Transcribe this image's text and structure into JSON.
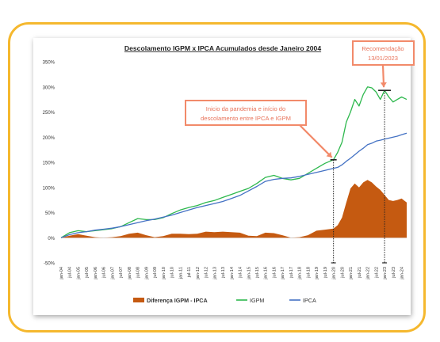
{
  "chart_data": {
    "type": "area",
    "title": "Descolamento IGPM x IPCA Acumulados desde Janeiro 2004",
    "xlabel": "",
    "ylabel": "",
    "ylim": [
      -50,
      350
    ],
    "yticks": [
      "-50%",
      "0%",
      "50%",
      "100%",
      "150%",
      "200%",
      "250%",
      "300%",
      "350%"
    ],
    "grid": false,
    "legend": "bottom",
    "xticks": [
      "jan-04",
      "jul-04",
      "jan-05",
      "jul-05",
      "jan-06",
      "jul-06",
      "jan-07",
      "jul-07",
      "jan-08",
      "jul-08",
      "jan-09",
      "jul-09",
      "jan-10",
      "jul-10",
      "jan-11",
      "jul-11",
      "jan-12",
      "jul-12",
      "jan-13",
      "jul-13",
      "jan-14",
      "jul-14",
      "jan-15",
      "jul-15",
      "jan-16",
      "jul-16",
      "jan-17",
      "jul-17",
      "jan-18",
      "jul-18",
      "jan-19",
      "jul-19",
      "jan-20",
      "jul-20",
      "jan-21",
      "jul-21",
      "jan-22",
      "jul-22",
      "jan-23",
      "jul-23",
      "jan-24"
    ],
    "x": [
      2004.0,
      2004.5,
      2005.0,
      2005.5,
      2006.0,
      2006.5,
      2007.0,
      2007.5,
      2008.0,
      2008.5,
      2009.0,
      2009.5,
      2010.0,
      2010.5,
      2011.0,
      2011.5,
      2012.0,
      2012.5,
      2013.0,
      2013.5,
      2014.0,
      2014.5,
      2015.0,
      2015.5,
      2016.0,
      2016.5,
      2017.0,
      2017.5,
      2018.0,
      2018.5,
      2019.0,
      2019.5,
      2020.0,
      2020.25,
      2020.5,
      2020.75,
      2021.0,
      2021.25,
      2021.5,
      2021.75,
      2022.0,
      2022.25,
      2022.5,
      2022.75,
      2023.0,
      2023.25,
      2023.5,
      2023.75,
      2024.0,
      2024.3
    ],
    "series": [
      {
        "name": "Diferença IGPM - IPCA",
        "color": "#c55a11",
        "values": [
          0,
          4,
          7,
          4,
          1,
          0,
          1,
          3,
          8,
          10,
          5,
          1,
          3,
          8,
          8,
          7,
          8,
          12,
          11,
          12,
          11,
          10,
          4,
          3,
          10,
          9,
          5,
          0,
          1,
          5,
          14,
          16,
          18,
          25,
          40,
          70,
          98,
          108,
          100,
          110,
          115,
          110,
          102,
          95,
          85,
          75,
          73,
          75,
          78,
          70
        ]
      },
      {
        "name": "IGPM",
        "color": "#2db84d",
        "values": [
          0,
          10,
          14,
          12,
          14,
          16,
          18,
          22,
          30,
          38,
          36,
          36,
          40,
          48,
          55,
          60,
          64,
          70,
          74,
          80,
          86,
          92,
          98,
          108,
          120,
          124,
          118,
          115,
          118,
          128,
          138,
          148,
          155,
          170,
          190,
          230,
          250,
          275,
          262,
          285,
          300,
          298,
          290,
          275,
          293,
          280,
          270,
          275,
          280,
          275
        ]
      },
      {
        "name": "IPCA",
        "color": "#4472c4",
        "values": [
          0,
          6,
          10,
          12,
          15,
          17,
          19,
          22,
          26,
          30,
          34,
          37,
          41,
          45,
          50,
          55,
          60,
          64,
          68,
          72,
          78,
          84,
          93,
          102,
          112,
          116,
          118,
          119,
          122,
          126,
          130,
          134,
          138,
          140,
          145,
          152,
          158,
          165,
          172,
          178,
          185,
          188,
          192,
          194,
          196,
          198,
          200,
          202,
          205,
          208
        ]
      }
    ],
    "annotations": [
      {
        "text": "Inicio da pandemia e início do",
        "text2": "descolamento entre IPCA e IGPM",
        "x": 2020.0,
        "y": 155
      },
      {
        "text": "Recomendação",
        "text2": "13/01/2023",
        "x": 2023.0,
        "y": 293
      }
    ]
  }
}
